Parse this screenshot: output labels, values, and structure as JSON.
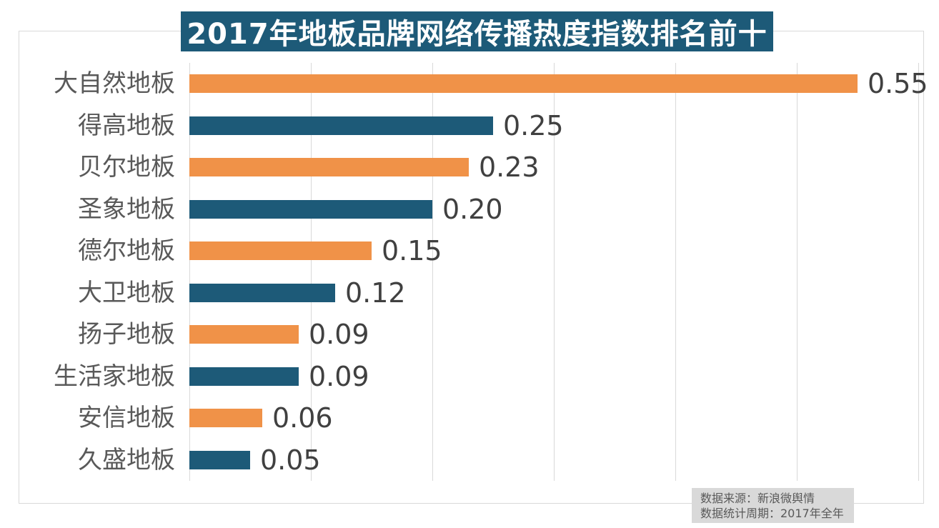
{
  "title": "2017年地板品牌网络传播热度指数排名前十",
  "source": {
    "line1": "数据来源：新浪微舆情",
    "line2": "数据统计周期：2017年全年"
  },
  "colors": {
    "title_bg": "#1d5a78",
    "title_text": "#ffffff",
    "bar_orange": "#f09248",
    "bar_blue": "#1d5a78",
    "gridline": "#d9d9d9",
    "frame_border": "#d9d9d9",
    "category_text": "#595959",
    "value_text": "#404040",
    "source_bg": "#d9d9d9",
    "source_text": "#595959"
  },
  "chart_data": {
    "type": "bar",
    "orientation": "horizontal",
    "title": "2017年地板品牌网络传播热度指数排名前十",
    "categories": [
      "大自然地板",
      "得高地板",
      "贝尔地板",
      "圣象地板",
      "德尔地板",
      "大卫地板",
      "扬子地板",
      "生活家地板",
      "安信地板",
      "久盛地板"
    ],
    "values": [
      0.55,
      0.25,
      0.23,
      0.2,
      0.15,
      0.12,
      0.09,
      0.09,
      0.06,
      0.05
    ],
    "value_labels": [
      "0.55",
      "0.25",
      "0.23",
      "0.20",
      "0.15",
      "0.12",
      "0.09",
      "0.09",
      "0.06",
      "0.05"
    ],
    "bar_colors": [
      "#f09248",
      "#1d5a78",
      "#f09248",
      "#1d5a78",
      "#f09248",
      "#1d5a78",
      "#f09248",
      "#1d5a78",
      "#f09248",
      "#1d5a78"
    ],
    "xlabel": "",
    "ylabel": "",
    "xlim": [
      0,
      0.6
    ],
    "gridline_interval": 0.1,
    "grid": true,
    "legend": false,
    "value_labels_position": "right-of-bar",
    "source_note": [
      "数据来源：新浪微舆情",
      "数据统计周期：2017年全年"
    ]
  }
}
